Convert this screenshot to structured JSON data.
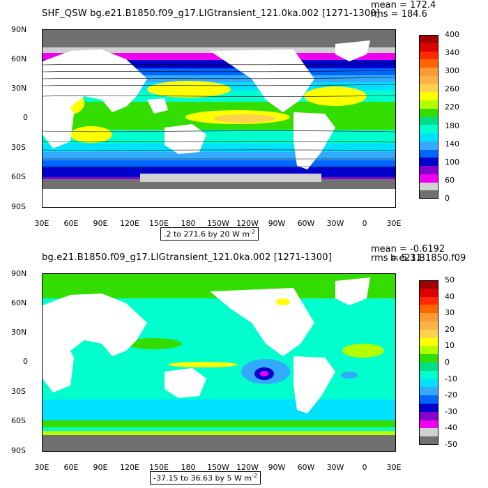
{
  "top_panel": {
    "title": "SHF_QSW  bg.e21.B1850.f09_g17.LIGtransient_121.0ka.002  [1271-1300]",
    "mean_text": "mean = 172.4",
    "rms_text": "rms = 184.6",
    "range_text": ".2 to 271.6 by 20  W m",
    "range_exp": "-2",
    "colorbar_labels": [
      "400",
      "340",
      "300",
      "260",
      "220",
      "180",
      "140",
      "100",
      "60",
      "0"
    ],
    "colorbar_colors": [
      "#a00000",
      "#dd0000",
      "#ff2a00",
      "#ff6600",
      "#ff9933",
      "#ffb347",
      "#ffd24d",
      "#ffff00",
      "#b3ff00",
      "#33dd00",
      "#00dd88",
      "#00ffcc",
      "#00e0ff",
      "#33aaff",
      "#0066ff",
      "#0000cc",
      "#8800cc",
      "#ee00ee",
      "#d0d0d0",
      "#707070"
    ]
  },
  "bottom_panel": {
    "title": "bg.e21.B1850.f09_g17.LIGtransient_121.0ka.002  [1271-1300]",
    "mean_text": "mean = -0.6192",
    "rms_text": "rms = 5.31",
    "overlap_text": "b.e21.B1850.f09",
    "range_text": "-37.15 to 36.63 by 5  W m",
    "range_exp": "-2",
    "colorbar_labels": [
      "50",
      "40",
      "30",
      "20",
      "10",
      "0",
      "-10",
      "-20",
      "-30",
      "-40",
      "-50"
    ],
    "colorbar_colors": [
      "#a00000",
      "#dd0000",
      "#ff2a00",
      "#ff6600",
      "#ff9933",
      "#ffb347",
      "#ffd24d",
      "#ffff00",
      "#b3ff00",
      "#33dd00",
      "#00dd88",
      "#00ffcc",
      "#00e0ff",
      "#33aaff",
      "#0066ff",
      "#0000cc",
      "#8800cc",
      "#ee00ee",
      "#d0d0d0",
      "#707070"
    ]
  },
  "lat_labels": [
    "90N",
    "60N",
    "30N",
    "0",
    "30S",
    "60S",
    "90S"
  ],
  "lon_labels": [
    "30E",
    "60E",
    "90E",
    "120E",
    "150E",
    "180",
    "150W",
    "120W",
    "90W",
    "60W",
    "30W",
    "0",
    "30E"
  ]
}
